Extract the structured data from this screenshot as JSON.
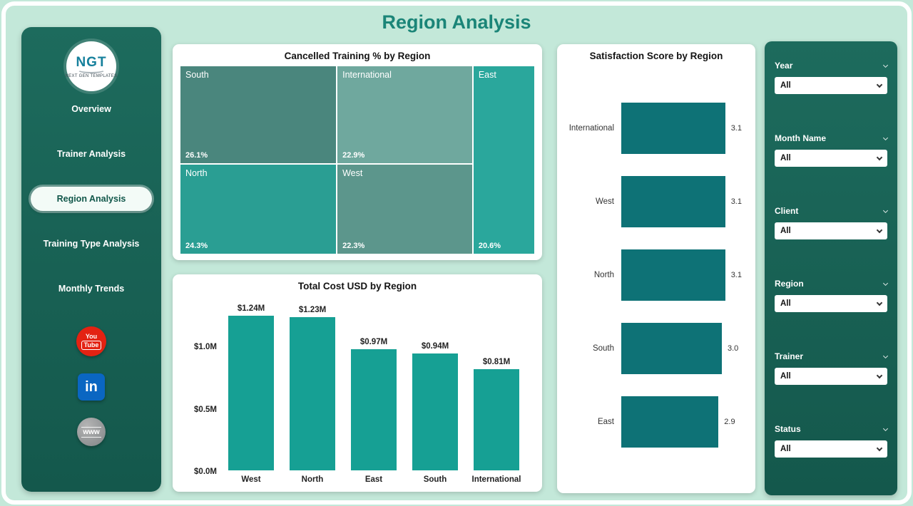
{
  "page_title": "Region Analysis",
  "sidebar": {
    "logo": {
      "text": "NGT",
      "subtext": "NEXT GEN TEMPLATES"
    },
    "items": [
      {
        "label": "Overview",
        "active": false
      },
      {
        "label": "Trainer Analysis",
        "active": false
      },
      {
        "label": "Region Analysis",
        "active": true
      },
      {
        "label": "Training Type Analysis",
        "active": false
      },
      {
        "label": "Monthly Trends",
        "active": false
      }
    ],
    "social": {
      "youtube_line1": "You",
      "youtube_line2": "Tube",
      "linkedin_text": "in",
      "website_text": "www"
    }
  },
  "filters": [
    {
      "label": "Year",
      "value": "All"
    },
    {
      "label": "Month Name",
      "value": "All"
    },
    {
      "label": "Client",
      "value": "All"
    },
    {
      "label": "Region",
      "value": "All"
    },
    {
      "label": "Trainer",
      "value": "All"
    },
    {
      "label": "Status",
      "value": "All"
    }
  ],
  "colors": {
    "background": "#c3e8d9",
    "panel": "#186156",
    "title_accent": "#1b8578",
    "bar": "#16a094",
    "hbar": "#0e7276"
  },
  "chart_data": [
    {
      "type": "treemap",
      "title": "Cancelled Training % by Region",
      "items": [
        {
          "label": "South",
          "value": 26.1,
          "value_label": "26.1%",
          "color": "#4a867d"
        },
        {
          "label": "International",
          "value": 22.9,
          "value_label": "22.9%",
          "color": "#6fa89e"
        },
        {
          "label": "East",
          "value": 20.6,
          "value_label": "20.6%",
          "color": "#2aa79c"
        },
        {
          "label": "North",
          "value": 24.3,
          "value_label": "24.3%",
          "color": "#2a9e93"
        },
        {
          "label": "West",
          "value": 22.3,
          "value_label": "22.3%",
          "color": "#5c968c"
        }
      ]
    },
    {
      "type": "bar",
      "title": "Total Cost USD by Region",
      "categories": [
        "West",
        "North",
        "East",
        "South",
        "International"
      ],
      "values": [
        1.24,
        1.23,
        0.97,
        0.94,
        0.81
      ],
      "value_labels": [
        "$1.24M",
        "$1.23M",
        "$0.97M",
        "$0.94M",
        "$0.81M"
      ],
      "y_ticks": [
        {
          "value": 0,
          "label": "$0.0M"
        },
        {
          "value": 0.5,
          "label": "$0.5M"
        },
        {
          "value": 1.0,
          "label": "$1.0M"
        }
      ],
      "ylim": [
        0,
        1.3
      ],
      "ylabel": "",
      "xlabel": ""
    },
    {
      "type": "bar-horizontal",
      "title": "Satisfaction Score by Region",
      "categories": [
        "International",
        "West",
        "North",
        "South",
        "East"
      ],
      "values": [
        3.1,
        3.1,
        3.1,
        3.0,
        2.9
      ],
      "value_labels": [
        "3.1",
        "3.1",
        "3.1",
        "3.0",
        "2.9"
      ],
      "xlim": [
        0,
        3.3
      ]
    }
  ]
}
